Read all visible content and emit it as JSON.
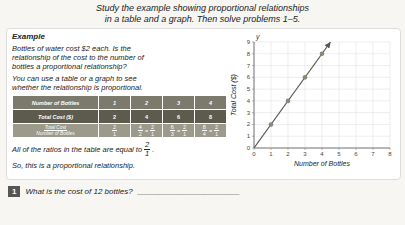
{
  "chart_data": [
    {
      "type": "text",
      "title": "Study the example showing proportional relationships\nin a table and a graph. Then solve problems 1–5.",
      "annotations": [
        "Example",
        "Bottles of water cost $2 each. Is the\nrelationship of the cost to the number of\nbottles a proportional relationship?",
        "You can use a table or a graph to see\nwhether the relationship is proportional.",
        {
          "text": "All of the ratios in the table are equal to",
          "fraction": {
            "num": "2",
            "den": "1"
          },
          "end": "."
        },
        "So, this is a proportional relationship.",
        {
          "number": "1",
          "text": "What is the cost of 12 bottles?",
          "blank": "_______________________"
        }
      ]
    },
    {
      "type": "table",
      "columns": [
        "Number of Bottles",
        "1",
        "2",
        "3",
        "4"
      ],
      "rows": [
        {
          "label": "Total Cost ($)",
          "cells": [
            "2",
            "4",
            "6",
            "8"
          ]
        },
        {
          "label": {
            "num": "Total Cost",
            "den": "Number of Bottles"
          },
          "cells": [
            {
              "num": "2",
              "den": "1"
            },
            {
              "num": "4",
              "den": "2",
              "equals": {
                "sign": "=",
                "num": "2",
                "den": "1"
              }
            },
            {
              "num": "6",
              "den": "3",
              "equals": {
                "sign": "=",
                "num": "2",
                "den": "1"
              }
            },
            {
              "num": "8",
              "den": "4",
              "equals": {
                "sign": "=",
                "num": "2",
                "den": "1"
              }
            }
          ]
        }
      ]
    },
    {
      "type": "scatter",
      "x_label": "Number of Bottles",
      "y_label": "Total Cost ($)",
      "annotations": [
        "y"
      ],
      "xlim": [
        0,
        8
      ],
      "ylim": [
        0,
        9
      ],
      "xticks": [
        0,
        1,
        2,
        3,
        4,
        5,
        6,
        7,
        8
      ],
      "yticks": [
        0,
        1,
        2,
        3,
        4,
        5,
        6,
        7,
        8,
        9
      ],
      "grid": true,
      "series": [
        {
          "type": "line",
          "marker": "arrow",
          "color": "#555555",
          "x": [
            0,
            4.5
          ],
          "values": [
            0,
            9
          ]
        },
        {
          "type": "scatter",
          "color": "#888877",
          "x": [
            1,
            2,
            3,
            4
          ],
          "values": [
            2,
            4,
            6,
            8
          ]
        }
      ]
    }
  ]
}
